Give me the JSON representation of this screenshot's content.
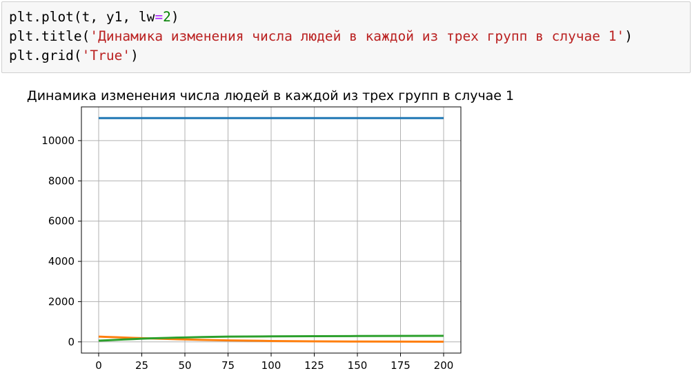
{
  "code": {
    "lines": [
      [
        {
          "t": "plt.plot(t, y1, lw"
        },
        {
          "t": "=",
          "c": "op"
        },
        {
          "t": "2",
          "c": "num"
        },
        {
          "t": ")"
        }
      ],
      [
        {
          "t": "plt.title("
        },
        {
          "t": "'Динамика изменения числа людей в каждой из трех групп в случае 1'",
          "c": "str"
        },
        {
          "t": ")"
        }
      ],
      [
        {
          "t": "plt.grid("
        },
        {
          "t": "'True'",
          "c": "str"
        },
        {
          "t": ")"
        }
      ]
    ]
  },
  "chart_data": {
    "type": "line",
    "title": "Динамика изменения числа людей в каждой из трех групп в случае 1",
    "xlabel": "",
    "ylabel": "",
    "xlim": [
      -10,
      210
    ],
    "ylim": [
      -556,
      11676
    ],
    "xticks": [
      0,
      25,
      50,
      75,
      100,
      125,
      150,
      175,
      200
    ],
    "yticks": [
      0,
      2000,
      4000,
      6000,
      8000,
      10000
    ],
    "grid": true,
    "legend": "none",
    "series": [
      {
        "color": "#1f77b4",
        "x": [
          0,
          200
        ],
        "y": [
          11120,
          11120
        ]
      },
      {
        "color": "#ff7f0e",
        "x": [
          0,
          5,
          10,
          15,
          20,
          25,
          30,
          40,
          50,
          60,
          75,
          100,
          125,
          150,
          175,
          200
        ],
        "y": [
          260,
          245,
          230,
          215,
          200,
          185,
          170,
          145,
          120,
          100,
          75,
          45,
          28,
          18,
          12,
          8
        ]
      },
      {
        "color": "#2ca02c",
        "x": [
          0,
          5,
          10,
          15,
          20,
          25,
          30,
          40,
          50,
          60,
          75,
          100,
          125,
          150,
          175,
          200
        ],
        "y": [
          60,
          80,
          100,
          120,
          140,
          160,
          175,
          200,
          220,
          240,
          260,
          275,
          285,
          290,
          295,
          300
        ]
      }
    ]
  }
}
